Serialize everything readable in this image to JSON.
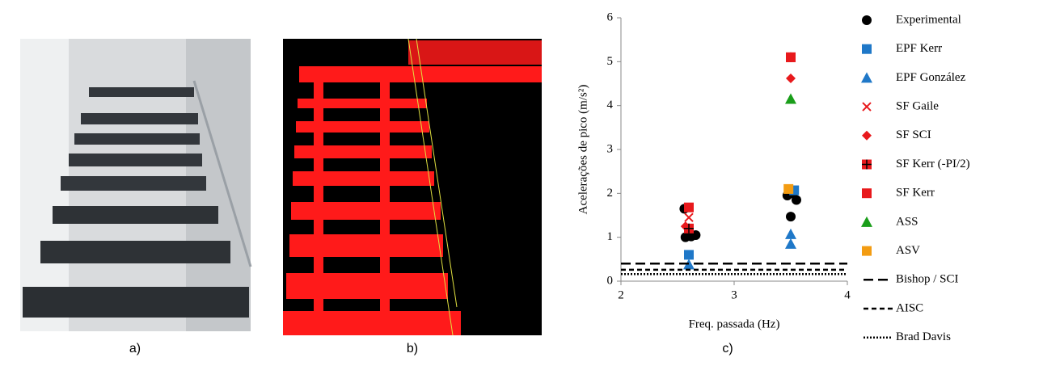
{
  "panels": [
    "a)",
    "b)",
    "c)"
  ],
  "chart_data": {
    "type": "scatter",
    "xlabel": "Freq. passada (Hz)",
    "ylabel": "Acelerações de pico (m/s²)",
    "xlim": [
      2,
      4
    ],
    "xticks": [
      2,
      3,
      4
    ],
    "ylim": [
      0,
      6
    ],
    "yticks": [
      0,
      1,
      2,
      3,
      4,
      5,
      6
    ],
    "series": [
      {
        "name": "Experimental",
        "marker": "circle",
        "color": "#000000",
        "x": [
          2.56,
          2.57,
          2.62,
          2.66,
          3.47,
          3.5,
          3.55,
          3.52
        ],
        "values": [
          1.65,
          1.0,
          1.02,
          1.05,
          1.95,
          1.47,
          1.85,
          2.0
        ]
      },
      {
        "name": "EPF Kerr",
        "marker": "square",
        "color": "#1f78c8",
        "x": [
          2.6,
          3.53
        ],
        "values": [
          0.6,
          2.07
        ]
      },
      {
        "name": "EPF González",
        "marker": "triangle",
        "color": "#1f78c8",
        "x": [
          2.6,
          3.5,
          3.5
        ],
        "values": [
          0.38,
          0.85,
          1.07
        ]
      },
      {
        "name": "SF Gaile",
        "marker": "cross",
        "color": "#e8191c",
        "x": [
          2.6
        ],
        "values": [
          1.45
        ]
      },
      {
        "name": "SF SCI",
        "marker": "diamond",
        "color": "#e8191c",
        "x": [
          2.57,
          3.5
        ],
        "values": [
          1.25,
          4.62
        ]
      },
      {
        "name": "SF Kerr (-PI/2)",
        "marker": "squareplus",
        "color": "#e8191c",
        "x": [
          2.6,
          3.5
        ],
        "values": [
          1.2,
          5.1
        ]
      },
      {
        "name": "SF Kerr",
        "marker": "square",
        "color": "#e8191c",
        "x": [
          2.6,
          3.5
        ],
        "values": [
          1.68,
          5.1
        ]
      },
      {
        "name": "ASS",
        "marker": "triangle",
        "color": "#1a9e1a",
        "x": [
          3.5
        ],
        "values": [
          4.15
        ]
      },
      {
        "name": "ASV",
        "marker": "square",
        "color": "#f39c12",
        "x": [
          3.48
        ],
        "values": [
          2.1
        ]
      },
      {
        "name": "Bishop / SCI",
        "marker": "line",
        "dash": "12 6",
        "color": "#000000",
        "x": [
          2,
          4
        ],
        "values": [
          0.4,
          0.4
        ]
      },
      {
        "name": "AISC",
        "marker": "line",
        "dash": "6 4",
        "color": "#000000",
        "x": [
          2,
          4
        ],
        "values": [
          0.26,
          0.26
        ]
      },
      {
        "name": "Brad Davis",
        "marker": "line",
        "dash": "2 2",
        "color": "#000000",
        "x": [
          2,
          4
        ],
        "values": [
          0.16,
          0.16
        ]
      }
    ]
  }
}
